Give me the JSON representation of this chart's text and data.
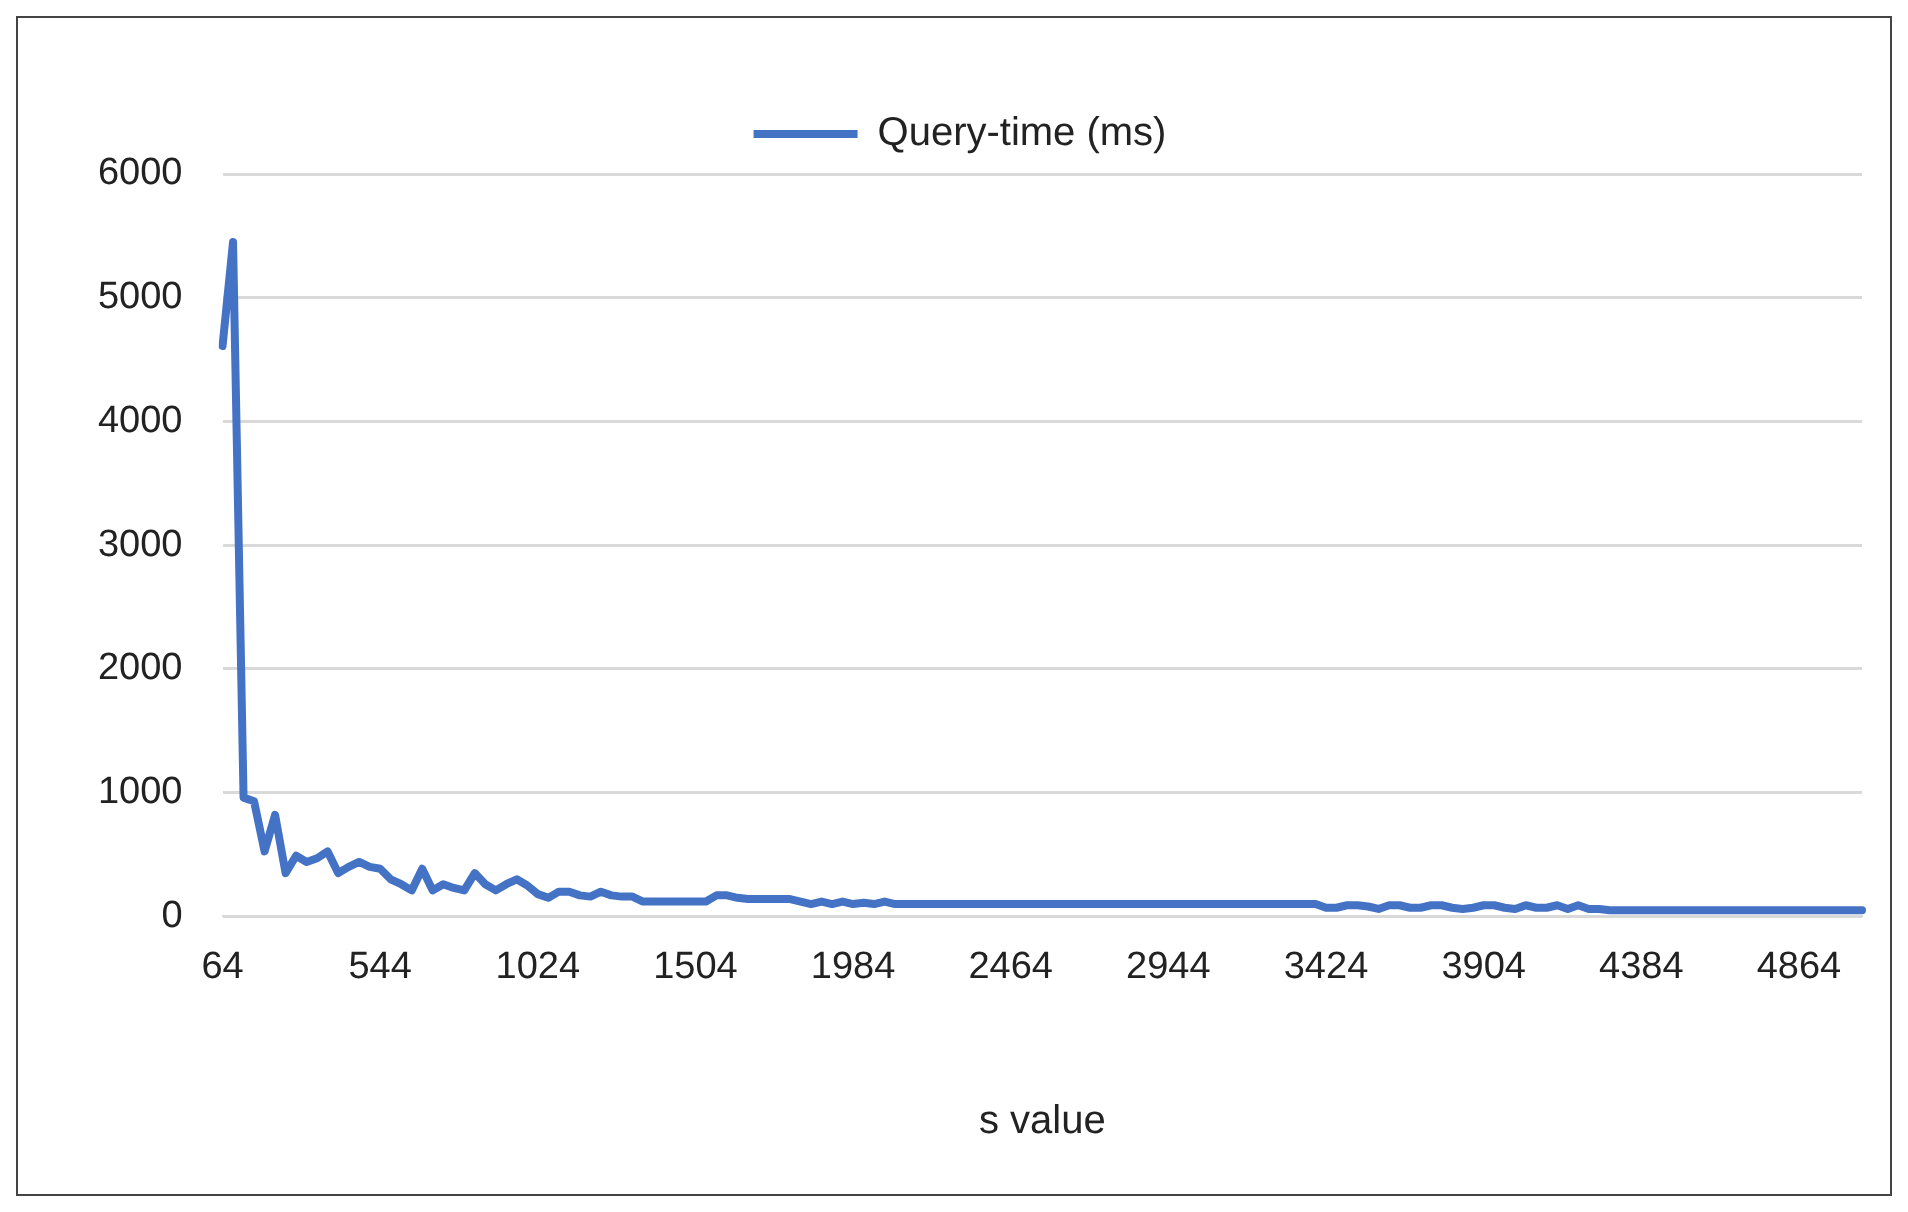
{
  "chart_data": {
    "type": "line",
    "xlabel": "s value",
    "categories": [
      "64",
      null,
      null,
      null,
      null,
      null,
      null,
      null,
      null,
      null,
      null,
      null,
      null,
      null,
      null,
      "544",
      null,
      null,
      null,
      null,
      null,
      null,
      null,
      null,
      null,
      null,
      null,
      null,
      null,
      null,
      "1024",
      null,
      null,
      null,
      null,
      null,
      null,
      null,
      null,
      null,
      null,
      null,
      null,
      null,
      null,
      "1504",
      null,
      null,
      null,
      null,
      null,
      null,
      null,
      null,
      null,
      null,
      null,
      null,
      null,
      null,
      "1984",
      null,
      null,
      null,
      null,
      null,
      null,
      null,
      null,
      null,
      null,
      null,
      null,
      null,
      null,
      "2464",
      null,
      null,
      null,
      null,
      null,
      null,
      null,
      null,
      null,
      null,
      null,
      null,
      null,
      null,
      "2944",
      null,
      null,
      null,
      null,
      null,
      null,
      null,
      null,
      null,
      null,
      null,
      null,
      null,
      null,
      "3424",
      null,
      null,
      null,
      null,
      null,
      null,
      null,
      null,
      null,
      null,
      null,
      null,
      null,
      null,
      "3904",
      null,
      null,
      null,
      null,
      null,
      null,
      null,
      null,
      null,
      null,
      null,
      null,
      null,
      null,
      "4384",
      null,
      null,
      null,
      null,
      null,
      null,
      null,
      null,
      null,
      null,
      null,
      null,
      null,
      null,
      "4864",
      null,
      null,
      null,
      null,
      null,
      null
    ],
    "series": [
      {
        "name": "Query-time (ms)",
        "color": "#4472c4",
        "values": [
          4610,
          5450,
          960,
          930,
          525,
          820,
          350,
          490,
          440,
          470,
          525,
          350,
          400,
          440,
          400,
          385,
          300,
          260,
          210,
          385,
          210,
          260,
          230,
          210,
          350,
          260,
          210,
          260,
          300,
          250,
          180,
          150,
          200,
          200,
          170,
          160,
          200,
          170,
          160,
          160,
          120,
          120,
          120,
          120,
          120,
          120,
          120,
          170,
          170,
          150,
          140,
          140,
          140,
          140,
          140,
          120,
          100,
          120,
          100,
          120,
          100,
          110,
          100,
          120,
          100,
          100,
          100,
          100,
          100,
          100,
          100,
          100,
          100,
          100,
          100,
          100,
          100,
          100,
          100,
          100,
          100,
          100,
          100,
          100,
          100,
          100,
          100,
          100,
          100,
          100,
          100,
          100,
          100,
          100,
          100,
          100,
          100,
          100,
          100,
          100,
          100,
          100,
          100,
          100,
          100,
          70,
          70,
          90,
          90,
          80,
          60,
          90,
          90,
          70,
          70,
          90,
          90,
          70,
          60,
          70,
          90,
          90,
          70,
          60,
          90,
          70,
          70,
          90,
          60,
          90,
          60,
          60,
          50,
          50,
          50,
          50,
          50,
          50,
          50,
          50,
          50,
          50,
          50,
          50,
          50,
          50,
          50,
          50,
          50,
          50,
          50,
          50,
          50,
          50,
          50,
          50,
          50
        ]
      }
    ],
    "ylim": [
      0,
      6000
    ],
    "yticks": [
      0,
      1000,
      2000,
      3000,
      4000,
      5000,
      6000
    ],
    "grid": "y",
    "legend": "top",
    "marker": "none",
    "line_style": "solid"
  }
}
